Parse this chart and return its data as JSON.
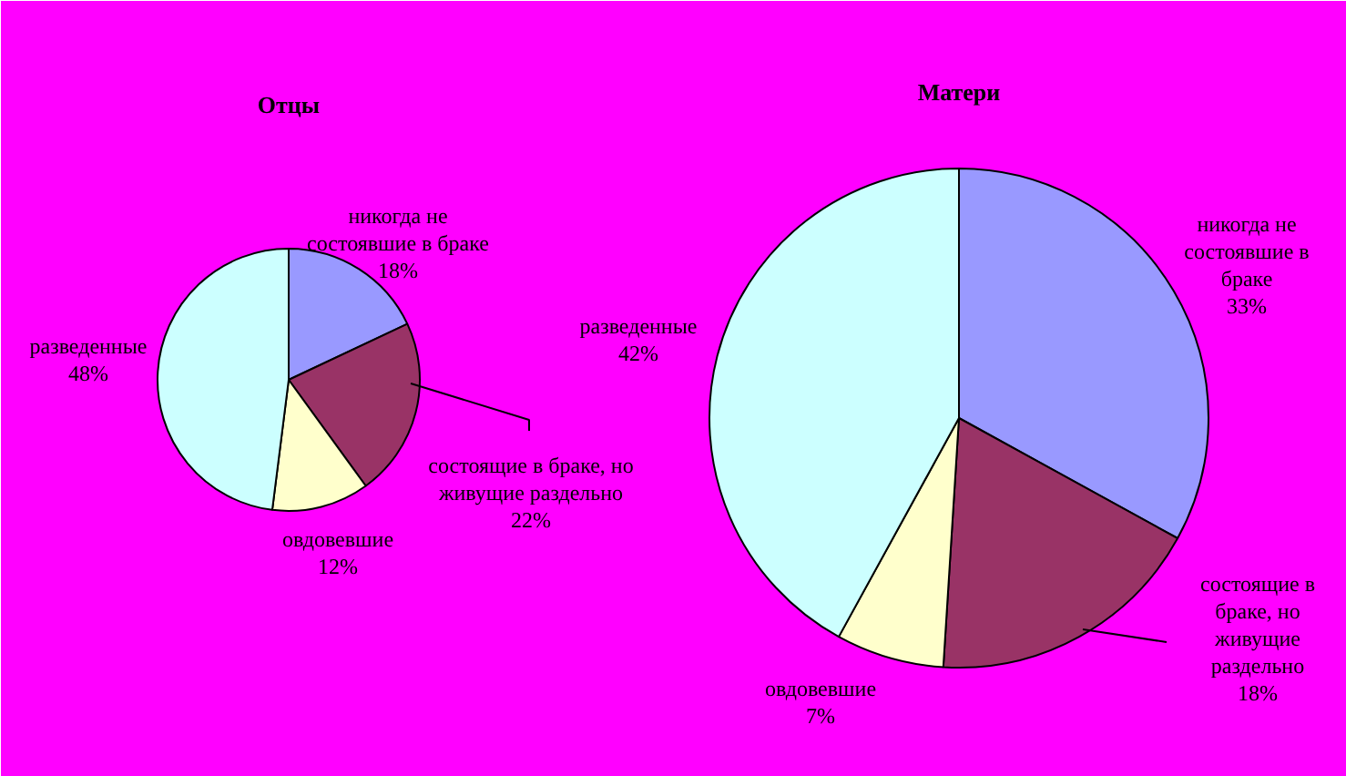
{
  "chart_data": [
    {
      "type": "pie",
      "title": "Отцы",
      "categories": [
        "никогда не состоявшие в браке",
        "состоящие в браке, но живущие раздельно",
        "овдовевшие",
        "разведенные"
      ],
      "values": [
        18,
        22,
        12,
        48
      ],
      "colors": [
        "#9999ff",
        "#993366",
        "#ffffcc",
        "#ccffff"
      ],
      "value_labels": [
        "18%",
        "22%",
        "12%",
        "48%"
      ]
    },
    {
      "type": "pie",
      "title": "Матери",
      "categories": [
        "никогда не состоявшие в браке",
        "состоящие в браке, но живущие раздельно",
        "овдовевшие",
        "разведенные"
      ],
      "values": [
        33,
        18,
        7,
        42
      ],
      "colors": [
        "#9999ff",
        "#993366",
        "#ffffcc",
        "#ccffff"
      ],
      "value_labels": [
        "33%",
        "18%",
        "7%",
        "42%"
      ]
    }
  ]
}
